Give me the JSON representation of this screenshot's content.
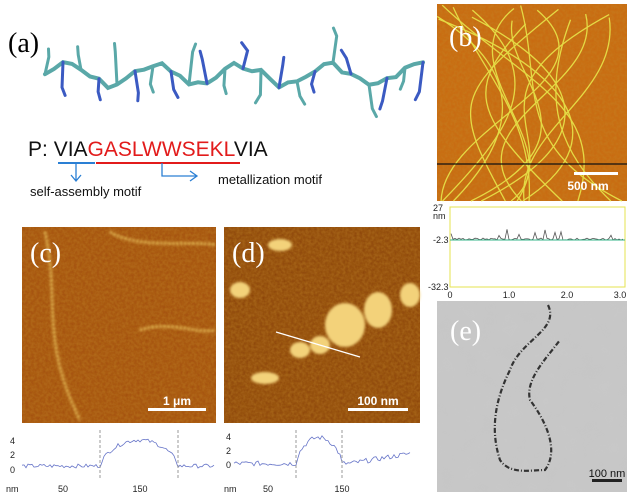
{
  "panels": {
    "a": {
      "label": "(a)",
      "sequence": {
        "prefix": "P: ",
        "left": "VIA",
        "middle": "GASLWWSEKL",
        "right": "VIA"
      },
      "annotations": [
        "self-assembly motif",
        "metallization motif"
      ]
    },
    "b": {
      "label": "(b)",
      "scale_bar": "500 nm",
      "profile": {
        "y_labels": [
          "27",
          "nm",
          "-2.3",
          "-32.3"
        ],
        "x_labels": [
          "0",
          "1.0",
          "2.0",
          "3.0"
        ]
      }
    },
    "c": {
      "label": "(c)",
      "scale_bar": "1 μm",
      "profile": {
        "y_labels": [
          "4",
          "2",
          "0"
        ],
        "x_labels": [
          "nm",
          "50",
          "150"
        ]
      }
    },
    "d": {
      "label": "(d)",
      "scale_bar": "100 nm",
      "profile": {
        "y_labels": [
          "4",
          "2",
          "0"
        ],
        "x_labels": [
          "nm",
          "50",
          "150"
        ]
      }
    },
    "e": {
      "label": "(e)",
      "scale_bar": "100 nm"
    }
  }
}
